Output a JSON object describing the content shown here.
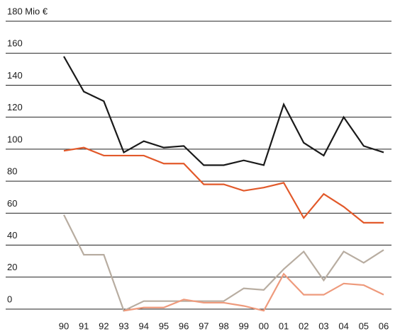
{
  "chart_data": {
    "type": "line",
    "categories": [
      "90",
      "91",
      "92",
      "93",
      "94",
      "95",
      "96",
      "97",
      "98",
      "99",
      "00",
      "01",
      "02",
      "03",
      "04",
      "05",
      "06"
    ],
    "series": [
      {
        "color": "#1a1a1a",
        "values": [
          158,
          136,
          130,
          98,
          105,
          101,
          102,
          90,
          90,
          93,
          90,
          128,
          104,
          96,
          120,
          102,
          98
        ]
      },
      {
        "color": "#e2592a",
        "values": [
          99,
          101,
          96,
          96,
          96,
          91,
          91,
          78,
          78,
          74,
          76,
          79,
          57,
          72,
          64,
          54,
          54
        ]
      },
      {
        "color": "#b8ada1",
        "values": [
          59,
          34,
          34,
          -1,
          5,
          5,
          5,
          5,
          5,
          13,
          12,
          25,
          36,
          18,
          36,
          29,
          37
        ]
      },
      {
        "color": "#ee9a7c",
        "values": [
          null,
          null,
          null,
          -1,
          1,
          1,
          6,
          4,
          4,
          2,
          -1,
          22,
          9,
          9,
          16,
          15,
          9
        ]
      }
    ],
    "ylim": [
      0,
      180
    ],
    "yticks": [
      0,
      20,
      40,
      60,
      80,
      100,
      120,
      140,
      160,
      {
        "value": 180,
        "label": "180 Mio €"
      }
    ],
    "grid": true
  }
}
